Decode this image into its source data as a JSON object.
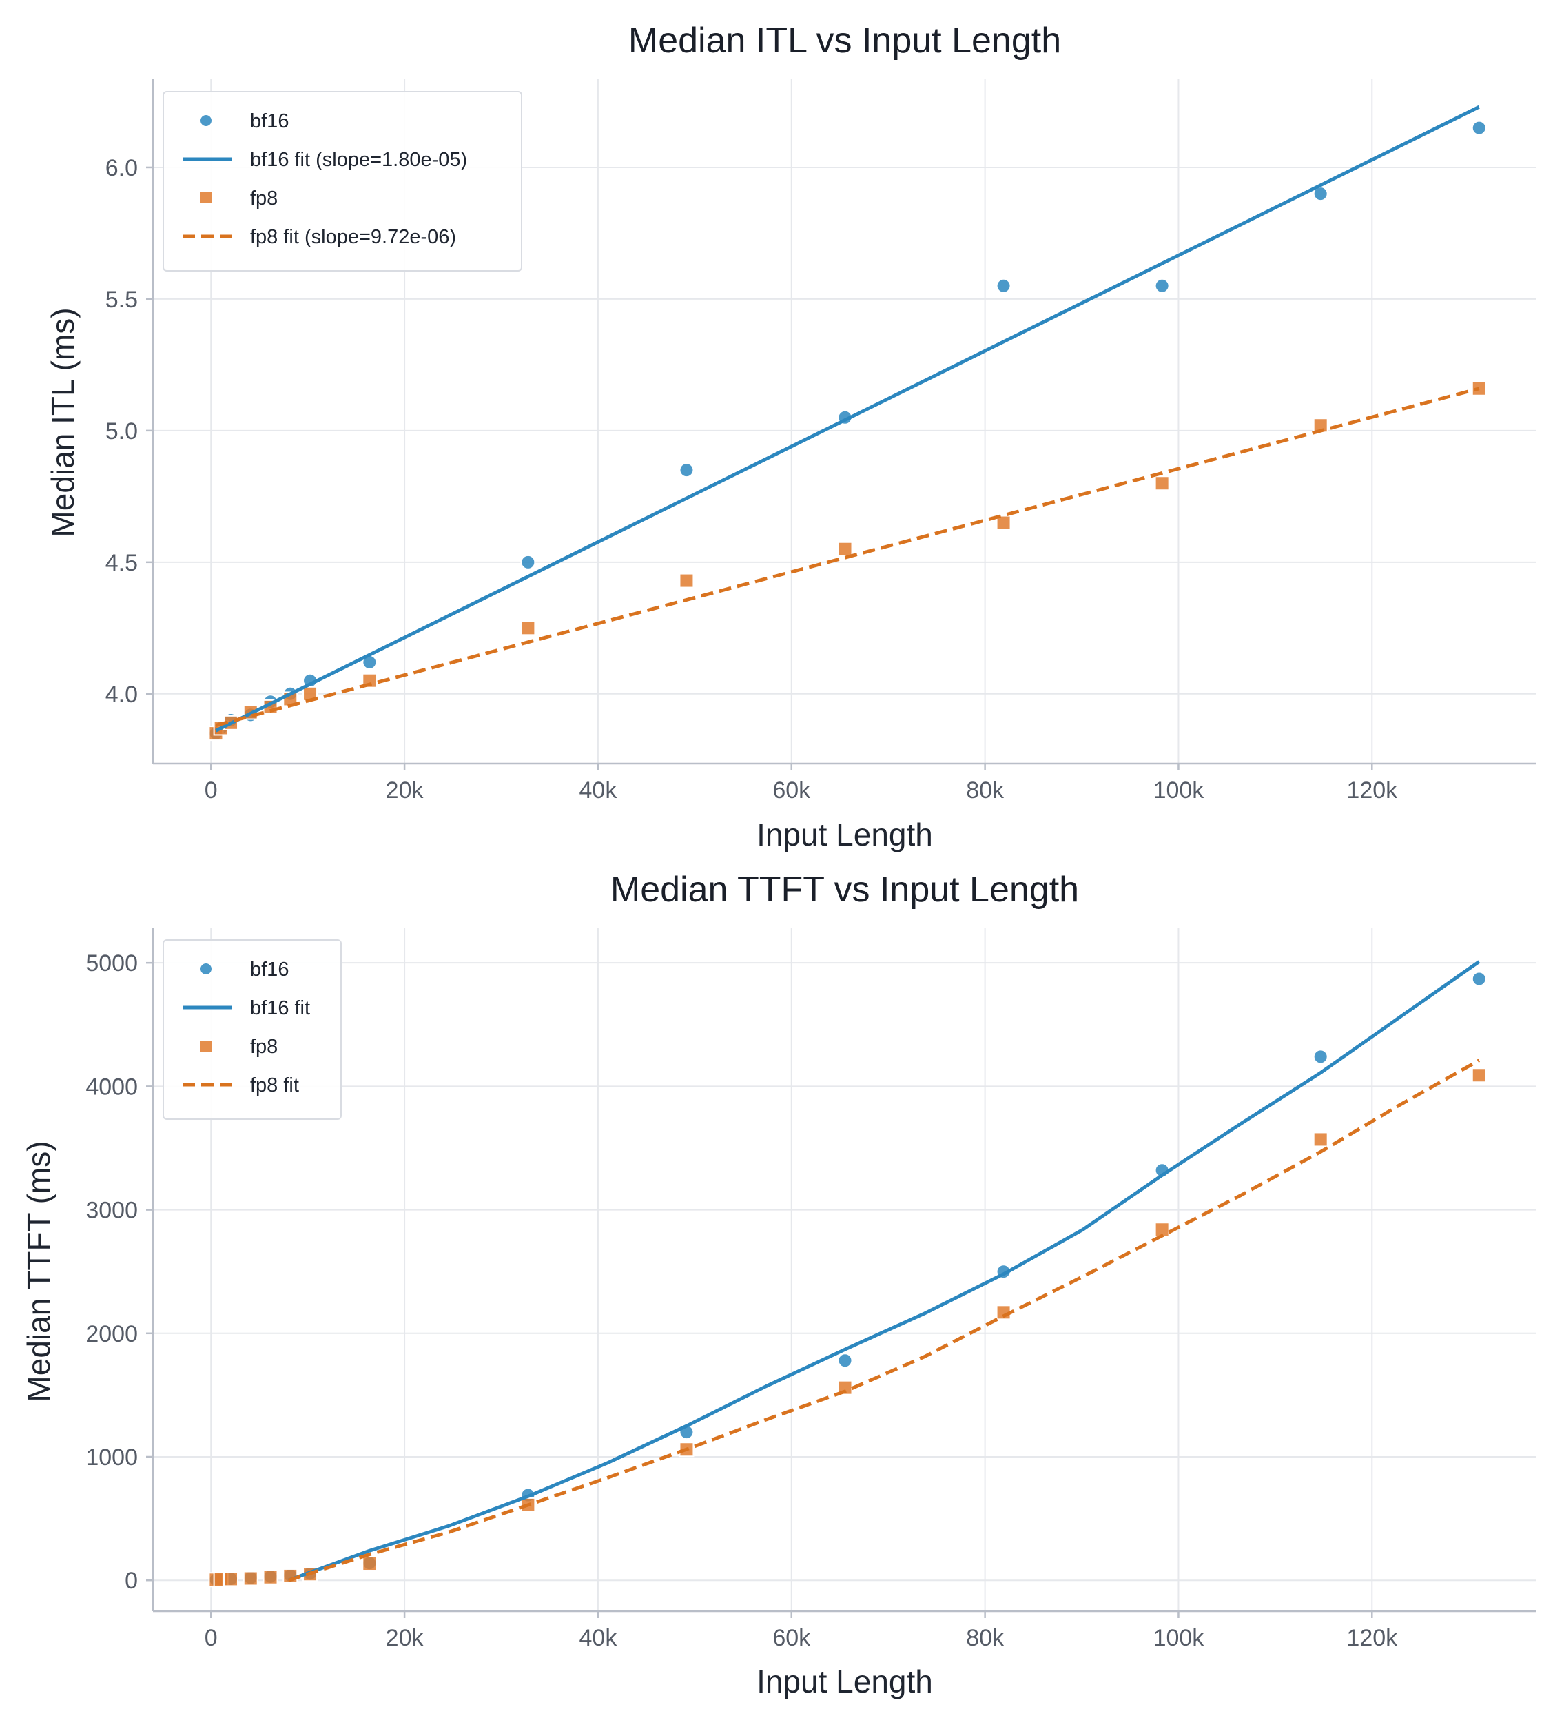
{
  "chart_data": [
    {
      "type": "scatter",
      "title": "Median ITL vs Input Length",
      "xlabel": "Input Length",
      "ylabel": "Median ITL (ms)",
      "xlim": [
        -6000,
        137000
      ],
      "ylim": [
        3.735,
        6.335
      ],
      "xticks": [
        0,
        20000,
        40000,
        60000,
        80000,
        100000,
        120000
      ],
      "xtick_labels": [
        "0",
        "20k",
        "40k",
        "60k",
        "80k",
        "100k",
        "120k"
      ],
      "yticks": [
        4.0,
        4.5,
        5.0,
        5.5,
        6.0
      ],
      "ytick_labels": [
        "4.0",
        "4.5",
        "5.0",
        "5.5",
        "6.0"
      ],
      "grid": true,
      "legend_position": "top-left",
      "series": [
        {
          "name": "bf16",
          "kind": "points",
          "marker": "circle",
          "color": "#2c87bf",
          "x": [
            512,
            1024,
            2048,
            4096,
            6144,
            8192,
            10240,
            16384,
            32768,
            49152,
            65536,
            81920,
            98304,
            114688,
            131072
          ],
          "y": [
            3.85,
            3.87,
            3.9,
            3.92,
            3.97,
            4.0,
            4.05,
            4.12,
            4.5,
            4.85,
            5.05,
            5.55,
            5.55,
            5.9,
            6.15
          ]
        },
        {
          "name": "bf16 fit (slope=1.80e-05)",
          "kind": "line",
          "dash": "solid",
          "color": "#2c87bf",
          "x": [
            500,
            131072
          ],
          "y": [
            3.86,
            6.23
          ]
        },
        {
          "name": "fp8",
          "kind": "points",
          "marker": "square",
          "color": "#e07b2e",
          "x": [
            512,
            1024,
            2048,
            4096,
            6144,
            8192,
            10240,
            16384,
            32768,
            49152,
            65536,
            81920,
            98304,
            114688,
            131072
          ],
          "y": [
            3.85,
            3.87,
            3.89,
            3.93,
            3.95,
            3.98,
            4.0,
            4.05,
            4.25,
            4.43,
            4.55,
            4.65,
            4.8,
            5.02,
            5.16
          ]
        },
        {
          "name": "fp8 fit (slope=9.72e-06)",
          "kind": "line",
          "dash": "dashed",
          "color": "#d9731f",
          "x": [
            500,
            131072
          ],
          "y": [
            3.88,
            5.16
          ]
        }
      ]
    },
    {
      "type": "scatter",
      "title": "Median TTFT vs Input Length",
      "xlabel": "Input Length",
      "ylabel": "Median TTFT (ms)",
      "xlim": [
        -6000,
        137000
      ],
      "ylim": [
        -250,
        5280
      ],
      "xticks": [
        0,
        20000,
        40000,
        60000,
        80000,
        100000,
        120000
      ],
      "xtick_labels": [
        "0",
        "20k",
        "40k",
        "60k",
        "80k",
        "100k",
        "120k"
      ],
      "yticks": [
        0,
        1000,
        2000,
        3000,
        4000,
        5000
      ],
      "ytick_labels": [
        "0",
        "1000",
        "2000",
        "3000",
        "4000",
        "5000"
      ],
      "grid": true,
      "legend_position": "top-left",
      "series": [
        {
          "name": "bf16",
          "kind": "points",
          "marker": "circle",
          "color": "#2c87bf",
          "x": [
            512,
            1024,
            2048,
            4096,
            6144,
            8192,
            10240,
            16384,
            32768,
            49152,
            65536,
            81920,
            98304,
            114688,
            131072
          ],
          "y": [
            5,
            8,
            12,
            20,
            30,
            40,
            55,
            140,
            690,
            1200,
            1780,
            2500,
            3320,
            4240,
            4870
          ]
        },
        {
          "name": "bf16 fit",
          "kind": "line",
          "dash": "solid",
          "color": "#2c87bf",
          "x": [
            8000,
            16384,
            24576,
            32768,
            40960,
            49152,
            57344,
            65536,
            73728,
            81920,
            90112,
            98304,
            106496,
            114688,
            122880,
            131072
          ],
          "y": [
            0,
            240,
            440,
            680,
            950,
            1250,
            1570,
            1870,
            2160,
            2480,
            2840,
            3280,
            3700,
            4110,
            4560,
            5010
          ]
        },
        {
          "name": "fp8",
          "kind": "points",
          "marker": "square",
          "color": "#e07b2e",
          "x": [
            512,
            1024,
            2048,
            4096,
            6144,
            8192,
            10240,
            16384,
            32768,
            49152,
            65536,
            81920,
            98304,
            114688,
            131072
          ],
          "y": [
            5,
            7,
            10,
            15,
            25,
            35,
            50,
            135,
            610,
            1060,
            1560,
            2170,
            2840,
            3570,
            4090
          ]
        },
        {
          "name": "fp8 fit",
          "kind": "line",
          "dash": "dashed",
          "color": "#d9731f",
          "x": [
            8000,
            16384,
            24576,
            32768,
            40960,
            49152,
            57344,
            65536,
            73728,
            81920,
            90112,
            98304,
            106496,
            114688,
            122880,
            131072
          ],
          "y": [
            0,
            210,
            390,
            610,
            830,
            1060,
            1300,
            1530,
            1810,
            2140,
            2460,
            2790,
            3120,
            3470,
            3850,
            4210
          ]
        }
      ]
    }
  ]
}
